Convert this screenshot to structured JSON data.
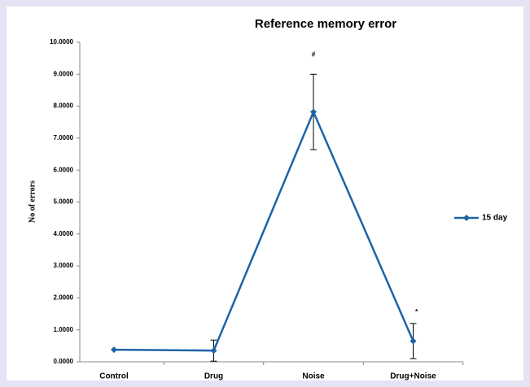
{
  "chart_data": {
    "type": "line",
    "title": "Reference memory error",
    "y_label": "No of errors",
    "categories": [
      "Control",
      "Drug",
      "Noise",
      "Drug+Noise"
    ],
    "series": [
      {
        "name": "15 day",
        "color": "#1f63a6",
        "values": [
          0.38,
          0.35,
          7.82,
          0.65
        ],
        "errors": [
          null,
          0.33,
          1.18,
          0.55
        ]
      }
    ],
    "annotations": [
      "#",
      "*"
    ],
    "ylim": [
      0,
      10
    ],
    "yticks": [
      {
        "value": 0,
        "label": "0.0000"
      },
      {
        "value": 1,
        "label": "1.0000"
      },
      {
        "value": 2,
        "label": "2.0000"
      },
      {
        "value": 3,
        "label": "3.0000"
      },
      {
        "value": 4,
        "label": "4.0000"
      },
      {
        "value": 5,
        "label": "5.0000"
      },
      {
        "value": 6,
        "label": "6.0000"
      },
      {
        "value": 7,
        "label": "7.0000"
      },
      {
        "value": 8,
        "label": "8.0000"
      },
      {
        "value": 9,
        "label": "9.0000"
      },
      {
        "value": 10,
        "label": "10.0000"
      }
    ],
    "legend": "right"
  }
}
